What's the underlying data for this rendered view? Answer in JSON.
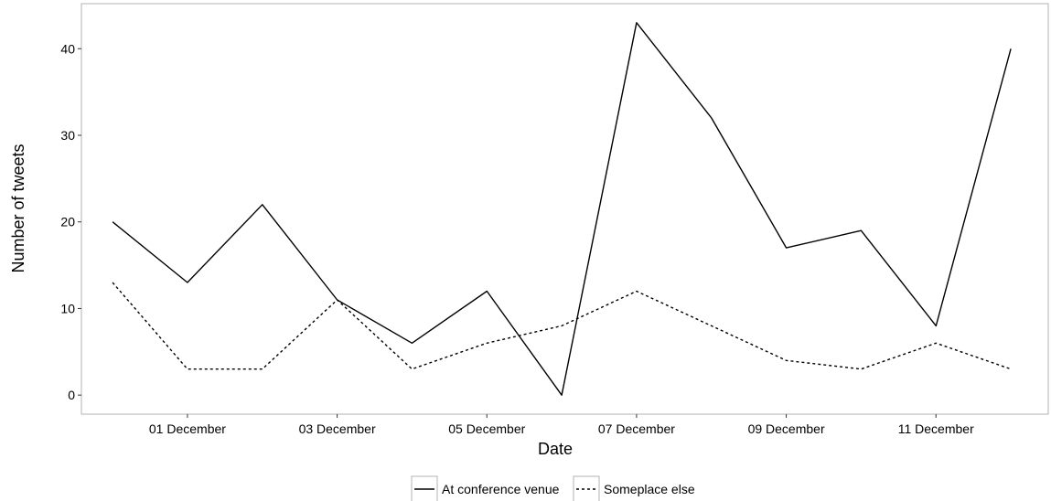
{
  "chart_data": {
    "type": "line",
    "xlabel": "Date",
    "ylabel": "Number of tweets",
    "x": [
      "2015-11-30",
      "2015-12-01",
      "2015-12-02",
      "2015-12-03",
      "2015-12-04",
      "2015-12-05",
      "2015-12-06",
      "2015-12-07",
      "2015-12-08",
      "2015-12-09",
      "2015-12-10",
      "2015-12-11",
      "2015-12-12"
    ],
    "x_ticks": [
      {
        "date": "2015-12-01",
        "label": "01 December"
      },
      {
        "date": "2015-12-03",
        "label": "03 December"
      },
      {
        "date": "2015-12-05",
        "label": "05 December"
      },
      {
        "date": "2015-12-07",
        "label": "07 December"
      },
      {
        "date": "2015-12-09",
        "label": "09 December"
      },
      {
        "date": "2015-12-11",
        "label": "11 December"
      }
    ],
    "y_ticks": [
      0,
      10,
      20,
      30,
      40
    ],
    "ylim": [
      -2.2,
      45.2
    ],
    "xlim": [
      "2015-11-29T14:00",
      "2015-12-12T12:00"
    ],
    "grid": false,
    "legend_position": "bottom",
    "series": [
      {
        "name": "At conference venue",
        "line_style": "solid",
        "color": "#000000",
        "values": [
          20,
          13,
          22,
          11,
          6,
          12,
          0,
          43,
          32,
          17,
          19,
          8,
          40
        ]
      },
      {
        "name": "Someplace else",
        "line_style": "dotted",
        "color": "#000000",
        "values": [
          13,
          3,
          3,
          11,
          3,
          6,
          8,
          12,
          8,
          4,
          3,
          6,
          3
        ]
      }
    ]
  }
}
